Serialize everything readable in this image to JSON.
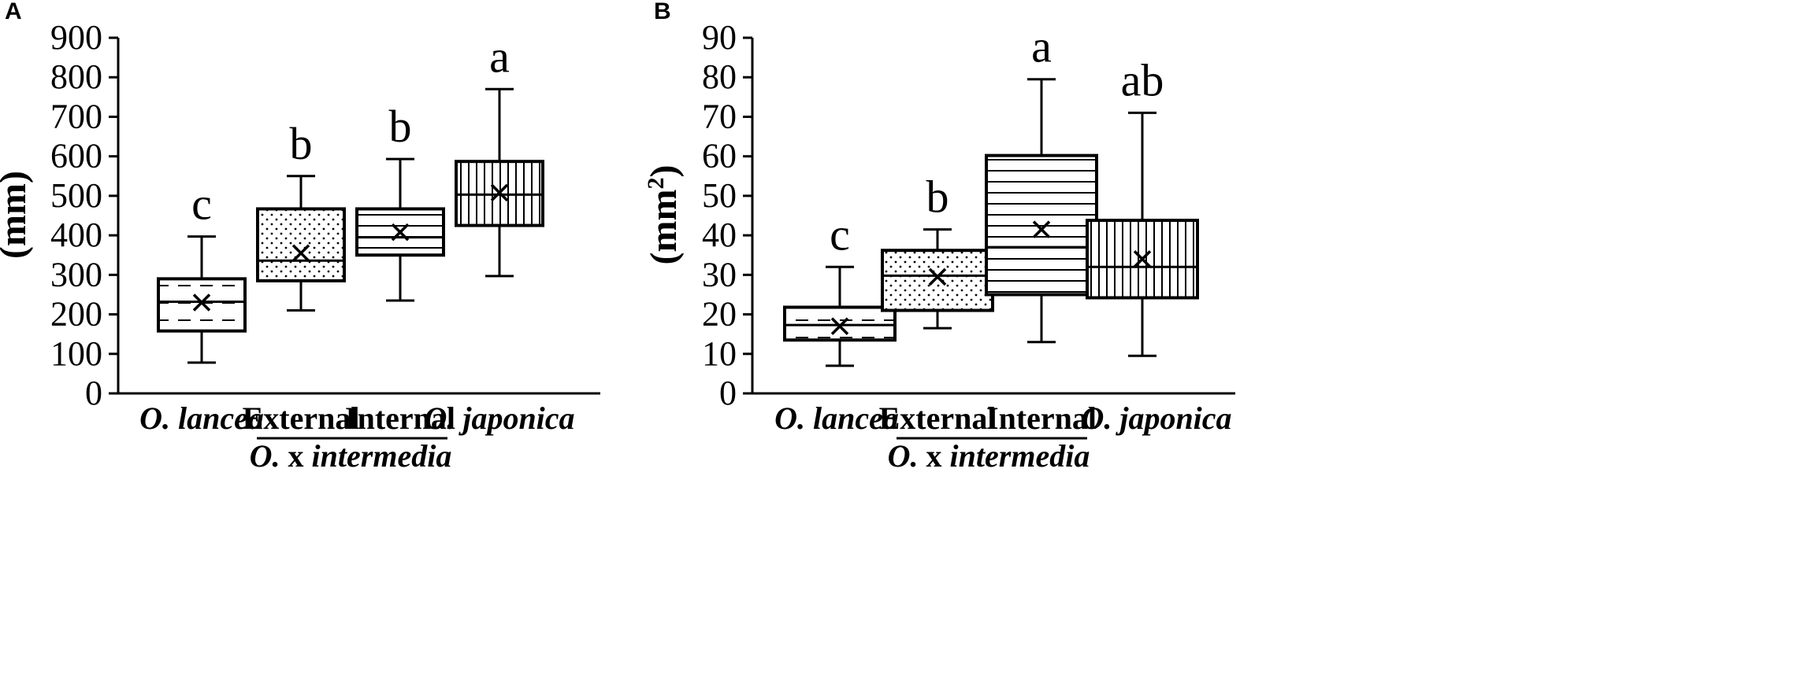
{
  "chart_data": [
    {
      "type": "box",
      "panel": "A",
      "ylabel": "(mm)",
      "ylabel_sup": "",
      "ylim": [
        0,
        900
      ],
      "yticks": [
        0,
        100,
        200,
        300,
        400,
        500,
        600,
        700,
        800,
        900
      ],
      "categories": [
        "O. lancea",
        "External",
        "Internal",
        "O. japonica"
      ],
      "group_label": {
        "prefix": "O.",
        "mid": " x ",
        "suffix": "intermedia"
      },
      "boxes": [
        {
          "min": 78,
          "q1": 158,
          "median": 232,
          "q3": 290,
          "max": 397,
          "mean": 230,
          "sig": "c",
          "pattern": "dash"
        },
        {
          "min": 210,
          "q1": 285,
          "median": 336,
          "q3": 467,
          "max": 550,
          "mean": 355,
          "sig": "b",
          "pattern": "dots"
        },
        {
          "min": 235,
          "q1": 350,
          "median": 395,
          "q3": 467,
          "max": 593,
          "mean": 408,
          "sig": "b",
          "pattern": "hlines"
        },
        {
          "min": 297,
          "q1": 425,
          "median": 503,
          "q3": 587,
          "max": 770,
          "mean": 508,
          "sig": "a",
          "pattern": "vlines"
        }
      ]
    },
    {
      "type": "box",
      "panel": "B",
      "ylabel": "(mm",
      "ylabel_sup": "2",
      "ylabel_end": ")",
      "ylim": [
        0,
        90
      ],
      "yticks": [
        0,
        10,
        20,
        30,
        40,
        50,
        60,
        70,
        80,
        90
      ],
      "categories": [
        "O. lancea",
        "External",
        "Internal",
        "O. japonica"
      ],
      "group_label": {
        "prefix": "O.",
        "mid": " x ",
        "suffix": "intermedia"
      },
      "boxes": [
        {
          "min": 7,
          "q1": 13.5,
          "median": 17.3,
          "q3": 21.8,
          "max": 32,
          "mean": 17,
          "sig": "c",
          "pattern": "dash"
        },
        {
          "min": 16.5,
          "q1": 21,
          "median": 29.8,
          "q3": 36.2,
          "max": 41.5,
          "mean": 29.5,
          "sig": "b",
          "pattern": "dots"
        },
        {
          "min": 13,
          "q1": 25,
          "median": 37,
          "q3": 60.2,
          "max": 79.5,
          "mean": 41.5,
          "sig": "a",
          "pattern": "hlines"
        },
        {
          "min": 9.5,
          "q1": 24.2,
          "median": 32,
          "q3": 43.8,
          "max": 71,
          "mean": 34,
          "sig": "ab",
          "pattern": "vlines"
        }
      ]
    }
  ]
}
